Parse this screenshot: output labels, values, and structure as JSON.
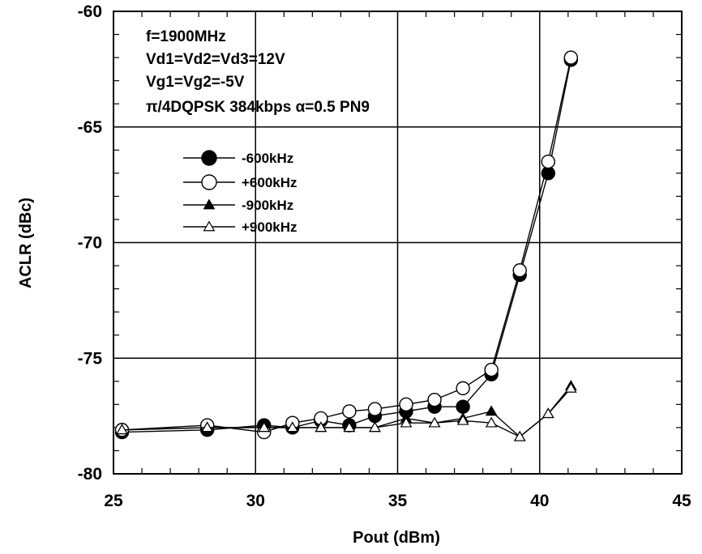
{
  "chart_data": {
    "type": "line",
    "title": "",
    "xlabel": "Pout (dBm)",
    "ylabel": "ACLR (dBc)",
    "xlim": [
      25,
      45
    ],
    "ylim": [
      -80,
      -60
    ],
    "xticks": [
      25,
      30,
      35,
      40,
      45
    ],
    "yticks": [
      -80,
      -75,
      -70,
      -65,
      -60
    ],
    "grid": true,
    "legend_position": "upper-left",
    "annotations": [
      "f=1900MHz",
      "Vd1=Vd2=Vd3=12V",
      "Vg1=Vg2=-5V",
      "π/4DQPSK 384kbps α=0.5 PN9"
    ],
    "series": [
      {
        "name": "-600kHz",
        "marker": "circle-filled",
        "x": [
          25.3,
          28.3,
          30.3,
          31.3,
          32.3,
          33.3,
          34.2,
          35.3,
          36.3,
          37.3,
          38.3,
          39.3,
          40.3,
          41.1
        ],
        "y": [
          -78.2,
          -78.1,
          -77.9,
          -78.0,
          -77.7,
          -77.9,
          -77.5,
          -77.3,
          -77.1,
          -77.1,
          -75.7,
          -71.4,
          -67.0,
          -62.1
        ]
      },
      {
        "name": "+600kHz",
        "marker": "circle-open",
        "x": [
          25.3,
          28.3,
          30.3,
          31.3,
          32.3,
          33.3,
          34.2,
          35.3,
          36.3,
          37.3,
          38.3,
          39.3,
          40.3,
          41.1
        ],
        "y": [
          -78.1,
          -77.9,
          -78.2,
          -77.8,
          -77.6,
          -77.3,
          -77.2,
          -77.0,
          -76.8,
          -76.3,
          -75.5,
          -71.2,
          -66.5,
          -62.0
        ]
      },
      {
        "name": "-900kHz",
        "marker": "triangle-filled",
        "x": [
          25.3,
          28.3,
          30.3,
          31.3,
          32.3,
          33.3,
          34.2,
          35.3,
          36.3,
          37.3,
          38.3,
          39.3,
          40.3,
          41.1
        ],
        "y": [
          -78.1,
          -78.0,
          -78.0,
          -78.0,
          -78.0,
          -78.0,
          -78.0,
          -77.6,
          -77.8,
          -77.6,
          -77.3,
          -78.4,
          -77.4,
          -76.2
        ]
      },
      {
        "name": "+900kHz",
        "marker": "triangle-open",
        "x": [
          25.3,
          28.3,
          30.3,
          31.3,
          32.3,
          33.3,
          34.2,
          35.3,
          36.3,
          37.3,
          38.3,
          39.3,
          40.3,
          41.1
        ],
        "y": [
          -78.1,
          -78.0,
          -78.0,
          -78.0,
          -78.0,
          -78.0,
          -78.0,
          -77.8,
          -77.8,
          -77.7,
          -77.8,
          -78.4,
          -77.4,
          -76.3
        ]
      }
    ]
  }
}
